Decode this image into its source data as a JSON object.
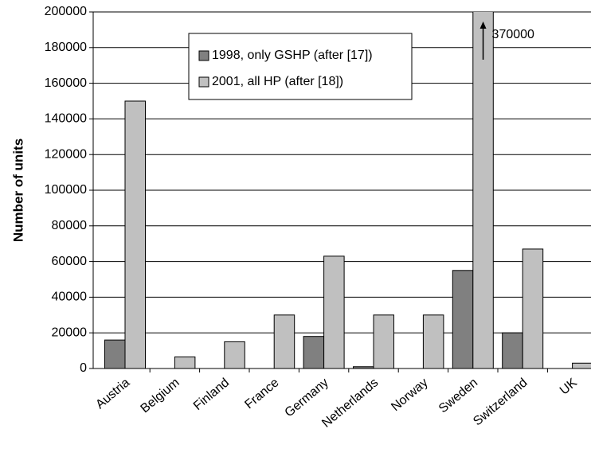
{
  "chart_data": {
    "type": "bar",
    "y_label": "Number of units",
    "categories": [
      "Austria",
      "Belgium",
      "Finland",
      "France",
      "Germany",
      "Netherlands",
      "Norway",
      "Sweden",
      "Switzerland",
      "UK"
    ],
    "series": [
      {
        "name": "1998, only GSHP (after [17])",
        "color": "#808080",
        "values": [
          16000,
          null,
          null,
          null,
          18000,
          1000,
          null,
          55000,
          20000,
          null
        ]
      },
      {
        "name": "2001, all HP (after [18])",
        "color": "#c0c0c0",
        "values": [
          150000,
          6500,
          15000,
          30000,
          63000,
          30000,
          30000,
          370000,
          67000,
          3000
        ],
        "value_labels": [
          null,
          null,
          null,
          null,
          null,
          null,
          null,
          "370000",
          null,
          null
        ]
      }
    ],
    "ylim": [
      0,
      200000
    ],
    "yticks": [
      0,
      20000,
      40000,
      60000,
      80000,
      100000,
      120000,
      140000,
      160000,
      180000,
      200000
    ],
    "grid": true
  }
}
